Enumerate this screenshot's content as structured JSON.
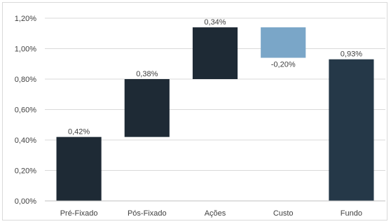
{
  "chart_data": {
    "type": "bar",
    "subtype": "waterfall",
    "categories": [
      "Pré-Fixado",
      "Pós-Fixado",
      "Ações",
      "Custo",
      "Fundo"
    ],
    "values": [
      0.42,
      0.38,
      0.34,
      -0.2,
      0.93
    ],
    "bases": [
      0.0,
      0.42,
      0.8,
      1.14,
      0.0
    ],
    "data_labels": [
      "0,42%",
      "0,38%",
      "0,34%",
      "-0,20%",
      "0,93%"
    ],
    "colors": [
      "#1e2a35",
      "#1e2a35",
      "#1e2a35",
      "#7aa6c8",
      "#253848"
    ],
    "y_ticks": [
      "0,00%",
      "0,20%",
      "0,40%",
      "0,60%",
      "0,80%",
      "1,00%",
      "1,20%"
    ],
    "ylim": [
      0,
      1.2
    ],
    "grid": true,
    "title": "",
    "xlabel": "",
    "ylabel": ""
  }
}
